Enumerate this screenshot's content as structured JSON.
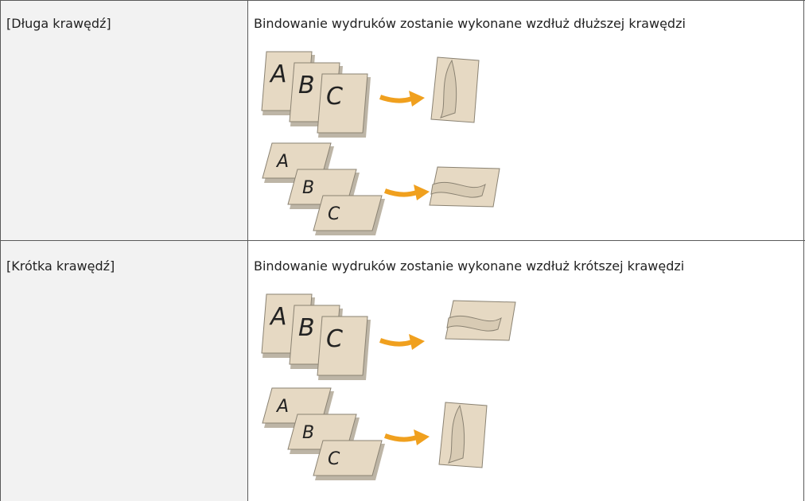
{
  "table": {
    "rows": [
      [
        "[Długa krawędź]",
        "Bindowanie wydruków zostanie wykonane wzdłuż dłuższej krawędzi"
      ],
      [
        "[Krótka krawędź]",
        "Bindowanie wydruków zostanie wykonane wzdłuż krótszej krawędzi"
      ]
    ]
  },
  "illustration_letters": [
    "A",
    "B",
    "C"
  ]
}
